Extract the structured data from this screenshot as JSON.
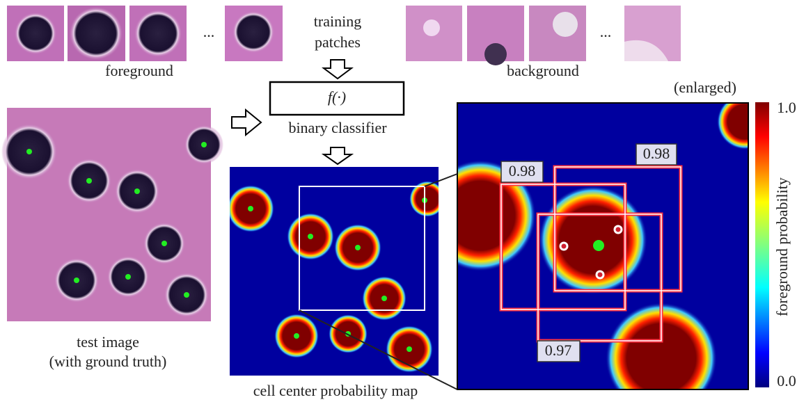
{
  "patches": {
    "foreground_label": "foreground",
    "background_label": "background",
    "ellipsis": "...",
    "training_line1": "training",
    "training_line2": "patches"
  },
  "classifier": {
    "function": "f(·)",
    "label": "binary classifier"
  },
  "test_image": {
    "line1": "test image",
    "line2": "(with ground truth)"
  },
  "probability_map": {
    "caption": "cell center probability map"
  },
  "enlarged": {
    "label": "(enlarged)",
    "boxes": [
      "0.98",
      "0.98",
      "0.97"
    ]
  },
  "colorbar": {
    "label": "foreground probability",
    "top": "1.0",
    "bottom": "0.0"
  }
}
